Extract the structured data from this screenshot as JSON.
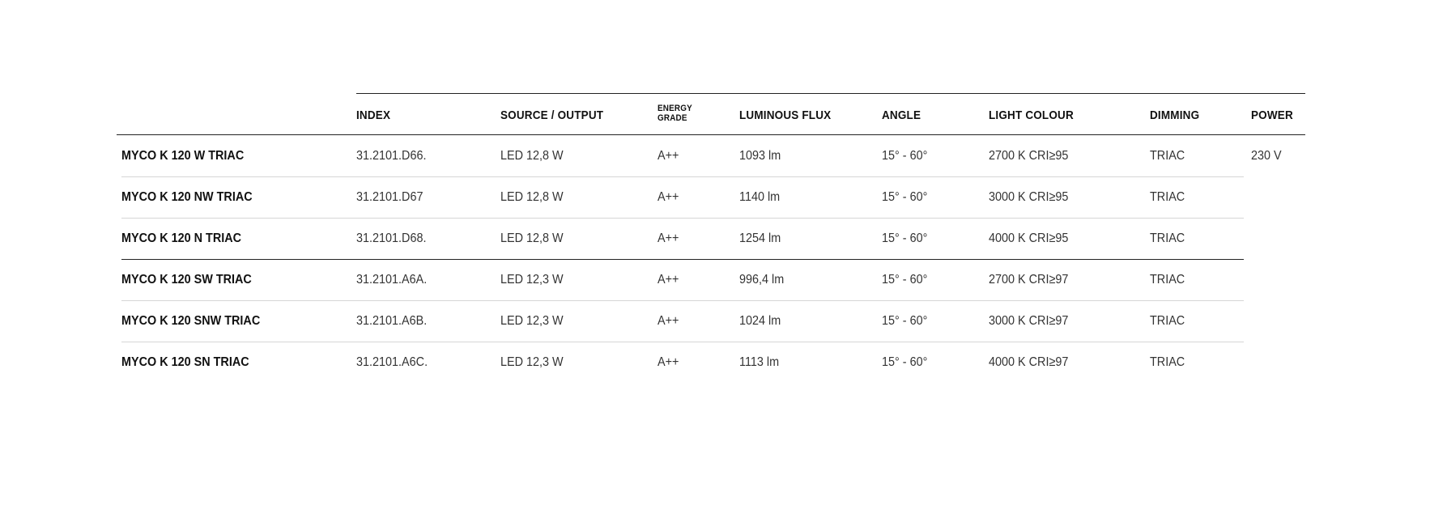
{
  "table": {
    "headers": [
      "INDEX",
      "SOURCE / OUTPUT",
      "ENERGY GRADE",
      "LUMINOUS FLUX",
      "ANGLE",
      "LIGHT COLOUR",
      "DIMMING",
      "POWER"
    ],
    "energy_header_lines": [
      "ENERGY",
      "GRADE"
    ],
    "power": "230 V",
    "rows": [
      {
        "name": "MYCO K 120 W TRIAC",
        "index": "31.2101.D66.",
        "source": "LED 12,8 W",
        "energy": "A++",
        "flux": "1093 lm",
        "angle": "15° - 60°",
        "colour": "2700 K CRI≥95",
        "dimming": "TRIAC"
      },
      {
        "name": "MYCO K 120 NW TRIAC",
        "index": "31.2101.D67",
        "source": "LED 12,8 W",
        "energy": "A++",
        "flux": "1140 lm",
        "angle": "15° - 60°",
        "colour": "3000 K CRI≥95",
        "dimming": "TRIAC"
      },
      {
        "name": "MYCO K 120 N TRIAC",
        "index": "31.2101.D68.",
        "source": "LED 12,8 W",
        "energy": "A++",
        "flux": "1254 lm",
        "angle": "15° - 60°",
        "colour": "4000 K CRI≥95",
        "dimming": "TRIAC"
      },
      {
        "name": "MYCO K 120 SW TRIAC",
        "index": "31.2101.A6A.",
        "source": "LED 12,3 W",
        "energy": "A++",
        "flux": "996,4 lm",
        "angle": "15° - 60°",
        "colour": "2700 K CRI≥97",
        "dimming": "TRIAC"
      },
      {
        "name": "MYCO K 120 SNW TRIAC",
        "index": "31.2101.A6B.",
        "source": "LED 12,3 W",
        "energy": "A++",
        "flux": "1024 lm",
        "angle": "15° - 60°",
        "colour": "3000 K CRI≥97",
        "dimming": "TRIAC"
      },
      {
        "name": "MYCO K 120 SN TRIAC",
        "index": "31.2101.A6C.",
        "source": "LED 12,3 W",
        "energy": "A++",
        "flux": "1113 lm",
        "angle": "15° - 60°",
        "colour": "4000 K CRI≥97",
        "dimming": "TRIAC"
      }
    ]
  }
}
